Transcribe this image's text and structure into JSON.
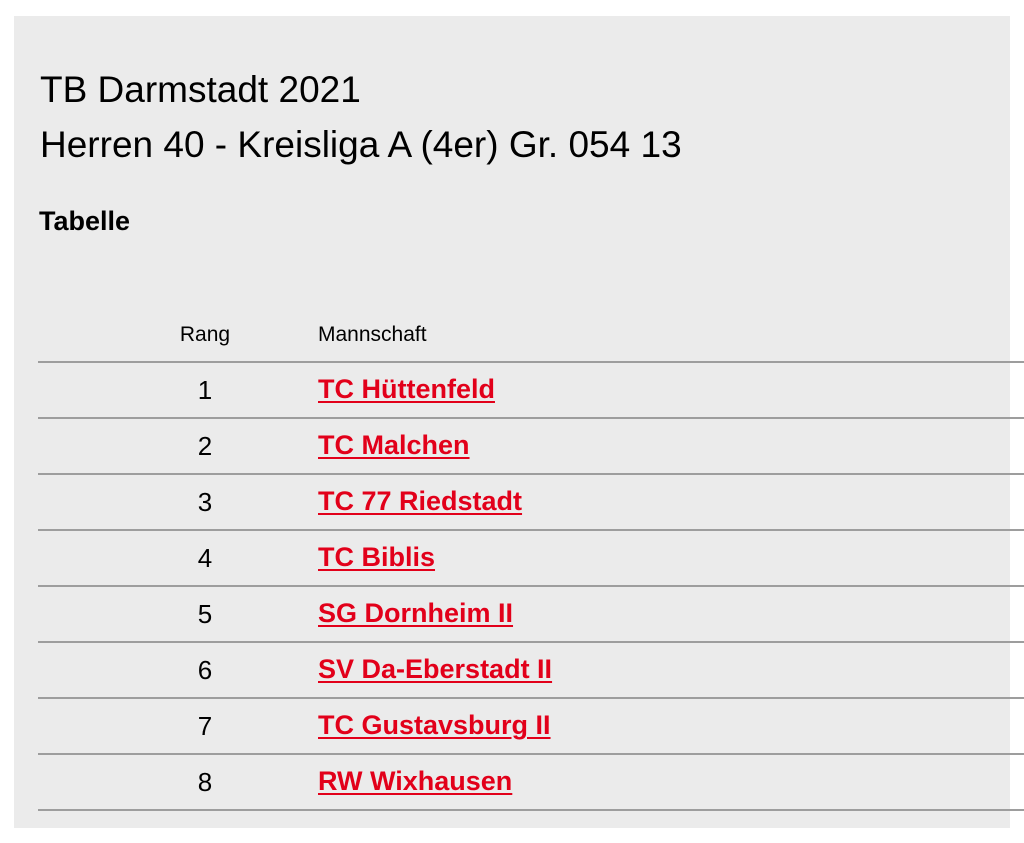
{
  "page": {
    "title": "TB Darmstadt 2021",
    "subtitle": "Herren 40 - Kreisliga A (4er) Gr. 054 13",
    "section_heading": "Tabelle"
  },
  "table": {
    "columns": {
      "rank": "Rang",
      "team": "Mannschaft"
    },
    "rows": [
      {
        "rank": "1",
        "team": "TC Hüttenfeld"
      },
      {
        "rank": "2",
        "team": "TC Malchen"
      },
      {
        "rank": "3",
        "team": "TC 77 Riedstadt"
      },
      {
        "rank": "4",
        "team": "TC Biblis"
      },
      {
        "rank": "5",
        "team": "SG Dornheim II"
      },
      {
        "rank": "6",
        "team": "SV Da-Eberstadt II"
      },
      {
        "rank": "7",
        "team": "TC Gustavsburg II"
      },
      {
        "rank": "8",
        "team": "RW Wixhausen"
      }
    ]
  },
  "colors": {
    "panel_background": "#ebebeb",
    "link": "#e2001a",
    "row_divider": "#9d9d9d"
  }
}
